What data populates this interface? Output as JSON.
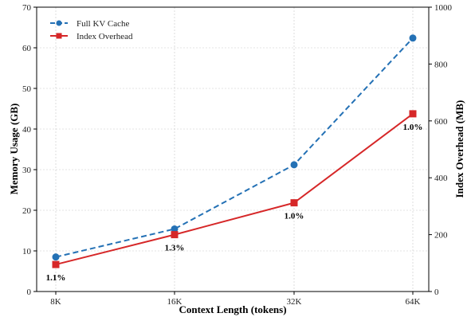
{
  "chart_data": {
    "type": "line",
    "categories": [
      "8K",
      "16K",
      "32K",
      "64K"
    ],
    "xlabel": "Context Length (tokens)",
    "ylabel": "Memory Usage (GB)",
    "y2label": "Index Overhead (MB)",
    "ylim": [
      0,
      70
    ],
    "y2lim": [
      0,
      1000
    ],
    "yticks": [
      "0",
      "10",
      "20",
      "30",
      "40",
      "50",
      "60",
      "70"
    ],
    "y2ticks": [
      "0",
      "200",
      "400",
      "600",
      "800",
      "1000"
    ],
    "grid": true,
    "legend_position": "top-left",
    "series": [
      {
        "name": "Full KV Cache",
        "axis": "left",
        "values": [
          8.5,
          15.4,
          31.2,
          62.4
        ],
        "color": "#2471b5",
        "line_style": "dashed",
        "marker": "circle"
      },
      {
        "name": "Index Overhead",
        "axis": "right",
        "values": [
          95,
          200,
          312,
          625
        ],
        "color": "#d62728",
        "line_style": "solid",
        "marker": "square"
      }
    ],
    "annotations": [
      "1.1%",
      "1.3%",
      "1.0%",
      "1.0%"
    ]
  }
}
